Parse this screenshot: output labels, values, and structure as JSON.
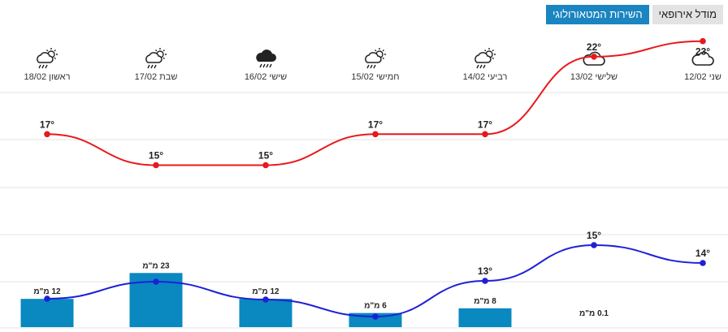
{
  "tabs": {
    "european_model": "מודל אירופאי",
    "meteorological_service": "השירות המטאורולוגי"
  },
  "days": [
    {
      "label": "שני 12/02",
      "icon": "cloud-icon"
    },
    {
      "label": "שלישי 13/02",
      "icon": "cloud-icon"
    },
    {
      "label": "רביעי 14/02",
      "icon": "sun-rain-icon"
    },
    {
      "label": "חמישי 15/02",
      "icon": "sun-rain-icon"
    },
    {
      "label": "שישי 16/02",
      "icon": "rain-cloud-icon"
    },
    {
      "label": "שבת 17/02",
      "icon": "sun-rain-icon"
    },
    {
      "label": "ראשון 18/02",
      "icon": "sun-rain-icon"
    }
  ],
  "chart_data": {
    "type": "line",
    "categories": [
      "12/02",
      "13/02",
      "14/02",
      "15/02",
      "16/02",
      "17/02",
      "18/02"
    ],
    "series": [
      {
        "values": [
          23,
          22,
          17,
          17,
          15,
          15,
          17
        ],
        "labels": [
          "23°",
          "22°",
          "17°",
          "17°",
          "15°",
          "15°",
          "17°"
        ],
        "color": "#e8191c"
      },
      {
        "values": [
          14,
          15,
          13,
          null,
          null,
          null,
          null
        ],
        "labels": [
          "14°",
          "15°",
          "13°",
          "",
          "",
          "",
          ""
        ],
        "color": "#1f1fd8"
      }
    ],
    "precipitation": {
      "type": "bar",
      "values": [
        0,
        0.1,
        8,
        6,
        12,
        23,
        12
      ],
      "labels": [
        "",
        "0.1 מ\"מ",
        "8 מ\"מ",
        "6 מ\"מ",
        "12 מ\"מ",
        "23 מ\"מ",
        "12 מ\"מ"
      ],
      "color": "#0a88c0"
    },
    "grid": true
  }
}
